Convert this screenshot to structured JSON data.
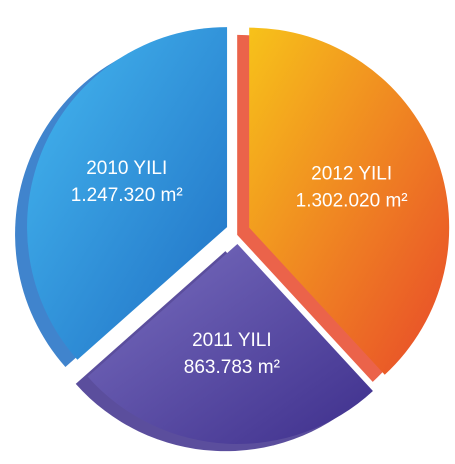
{
  "chart_data": {
    "type": "pie",
    "categories": [
      "2012 YILI",
      "2011 YILI",
      "2010 YILI"
    ],
    "values": [
      1302020,
      863783,
      1247320
    ],
    "value_labels": [
      "1.302.020  m²",
      "863.783  m²",
      "1.247.320  m²"
    ],
    "colors": [
      [
        "#f7c21a",
        "#e8482a"
      ],
      [
        "#7a6fc0",
        "#3e2f8c"
      ],
      [
        "#45b8f0",
        "#1f6fc4"
      ]
    ]
  }
}
